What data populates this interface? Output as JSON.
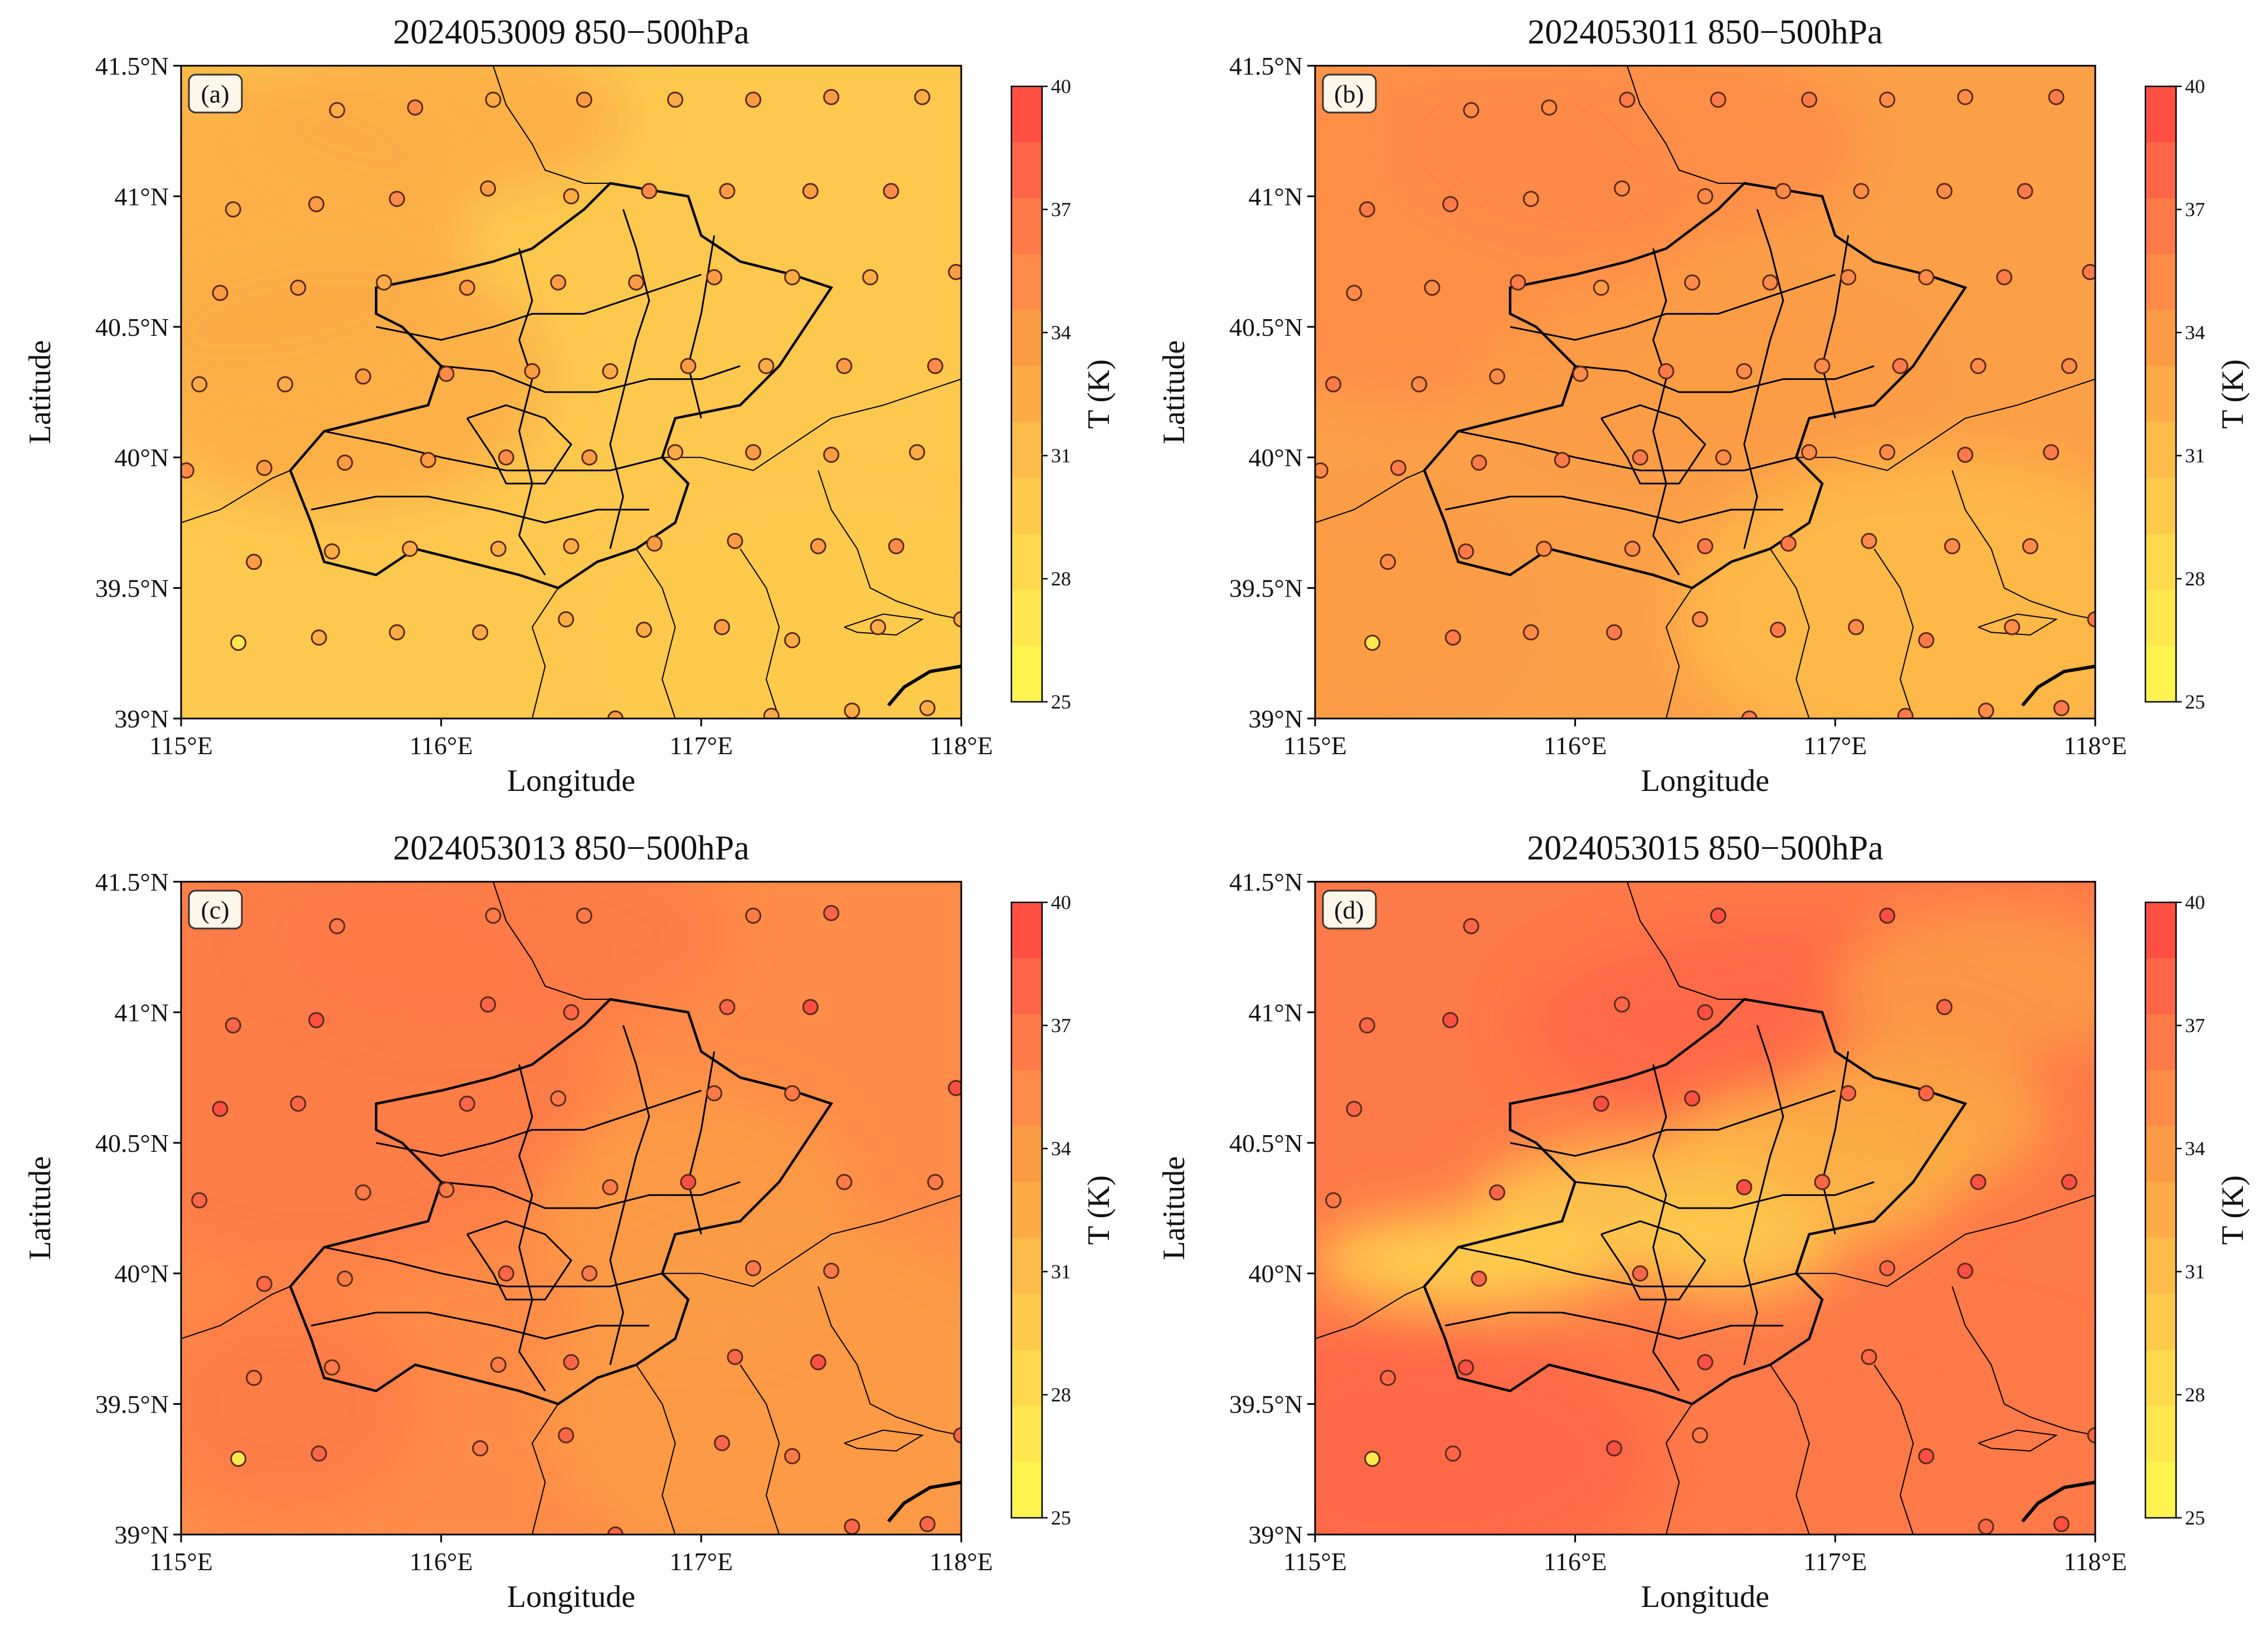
{
  "figure": {
    "xlabel": "Longitude",
    "ylabel": "Latitude",
    "colorbar_label": "T (K)",
    "colorbar_ticks": [
      "40",
      "37",
      "34",
      "31",
      "28",
      "25"
    ],
    "colorbar_colors": [
      "#ff4f43",
      "#ff6648",
      "#ff7a49",
      "#ff8b48",
      "#fb9c45",
      "#fcac46",
      "#fdbc49",
      "#fdca4c",
      "#fed94d",
      "#ffe84f",
      "#fff34f"
    ],
    "x_ticks": [
      "115°E",
      "116°E",
      "117°E",
      "118°E"
    ],
    "y_ticks": [
      "41.5°N",
      "41°N",
      "40.5°N",
      "40°N",
      "39.5°N",
      "39°N"
    ],
    "border_color": "#000000"
  },
  "chart_data": [
    {
      "type": "heatmap",
      "tag": "(a)",
      "title": "2024053009 850−500hPa",
      "xlim": [
        115,
        118
      ],
      "ylim": [
        39,
        41.5
      ],
      "units": "K",
      "crange": [
        25,
        40
      ],
      "background_T": 30.5,
      "field_gradient": "near-uniform ~30–31 K, slightly warmer ~32 K in west and north-west",
      "stations_T_approx": "mostly 32–35 K",
      "base_color": "#fdc84e"
    },
    {
      "type": "heatmap",
      "tag": "(b)",
      "title": "2024053011 850−500hPa",
      "xlim": [
        115,
        118
      ],
      "ylim": [
        39,
        41.5
      ],
      "units": "K",
      "crange": [
        25,
        40
      ],
      "background_T": 33,
      "field_gradient": "warmer ~35 K in north-west, cooler ~31 K south-east",
      "stations_T_approx": "mostly 34–38 K",
      "base_color": "#fca048"
    },
    {
      "type": "heatmap",
      "tag": "(c)",
      "title": "2024053013 850−500hPa",
      "xlim": [
        115,
        118
      ],
      "ylim": [
        39,
        41.5
      ],
      "units": "K",
      "crange": [
        25,
        40
      ],
      "background_T": 35,
      "field_gradient": "~37 K in north-west half, ~34 K south-east",
      "stations_T_approx": "mostly 35–38 K",
      "base_color": "#ff8c48"
    },
    {
      "type": "heatmap",
      "tag": "(d)",
      "title": "2024053015 850−500hPa",
      "xlim": [
        115,
        118
      ],
      "ylim": [
        39,
        41.5
      ],
      "units": "K",
      "crange": [
        25,
        40
      ],
      "background_T": 36,
      "field_gradient": "~38 K background; cool tongue ~28–30 K along 40–40.5°N",
      "stations_T_approx": "mostly 35–39 K",
      "base_color": "#ff7a49"
    }
  ],
  "stations": [
    [
      115.6,
      41.33
    ],
    [
      115.9,
      41.34
    ],
    [
      116.2,
      41.37
    ],
    [
      116.55,
      41.37
    ],
    [
      116.9,
      41.37
    ],
    [
      117.2,
      41.37
    ],
    [
      117.5,
      41.38
    ],
    [
      117.85,
      41.38
    ],
    [
      115.2,
      40.95
    ],
    [
      115.52,
      40.97
    ],
    [
      115.83,
      40.99
    ],
    [
      116.18,
      41.03
    ],
    [
      116.5,
      41.0
    ],
    [
      116.8,
      41.02
    ],
    [
      117.1,
      41.02
    ],
    [
      117.42,
      41.02
    ],
    [
      117.73,
      41.02
    ],
    [
      115.15,
      40.63
    ],
    [
      115.45,
      40.65
    ],
    [
      115.78,
      40.67
    ],
    [
      116.1,
      40.65
    ],
    [
      116.45,
      40.67
    ],
    [
      116.75,
      40.67
    ],
    [
      117.05,
      40.69
    ],
    [
      117.35,
      40.69
    ],
    [
      117.65,
      40.69
    ],
    [
      117.98,
      40.71
    ],
    [
      115.07,
      40.28
    ],
    [
      115.4,
      40.28
    ],
    [
      115.7,
      40.31
    ],
    [
      116.02,
      40.32
    ],
    [
      116.35,
      40.33
    ],
    [
      116.65,
      40.33
    ],
    [
      116.95,
      40.35
    ],
    [
      117.25,
      40.35
    ],
    [
      117.55,
      40.35
    ],
    [
      117.9,
      40.35
    ],
    [
      115.02,
      39.95
    ],
    [
      115.32,
      39.96
    ],
    [
      115.63,
      39.98
    ],
    [
      115.95,
      39.99
    ],
    [
      116.25,
      40.0
    ],
    [
      116.57,
      40.0
    ],
    [
      116.9,
      40.02
    ],
    [
      117.2,
      40.02
    ],
    [
      117.5,
      40.01
    ],
    [
      117.83,
      40.02
    ],
    [
      115.28,
      39.6
    ],
    [
      115.58,
      39.64
    ],
    [
      115.88,
      39.65
    ],
    [
      116.22,
      39.65
    ],
    [
      116.5,
      39.66
    ],
    [
      116.82,
      39.67
    ],
    [
      117.13,
      39.68
    ],
    [
      117.45,
      39.66
    ],
    [
      117.75,
      39.66
    ],
    [
      115.22,
      39.29
    ],
    [
      115.53,
      39.31
    ],
    [
      115.83,
      39.33
    ],
    [
      116.15,
      39.33
    ],
    [
      116.48,
      39.38
    ],
    [
      116.78,
      39.34
    ],
    [
      117.08,
      39.35
    ],
    [
      117.35,
      39.3
    ],
    [
      117.68,
      39.35
    ],
    [
      118.0,
      39.38
    ],
    [
      116.67,
      39.0
    ],
    [
      117.27,
      39.01
    ],
    [
      117.58,
      39.03
    ],
    [
      117.87,
      39.04
    ]
  ]
}
